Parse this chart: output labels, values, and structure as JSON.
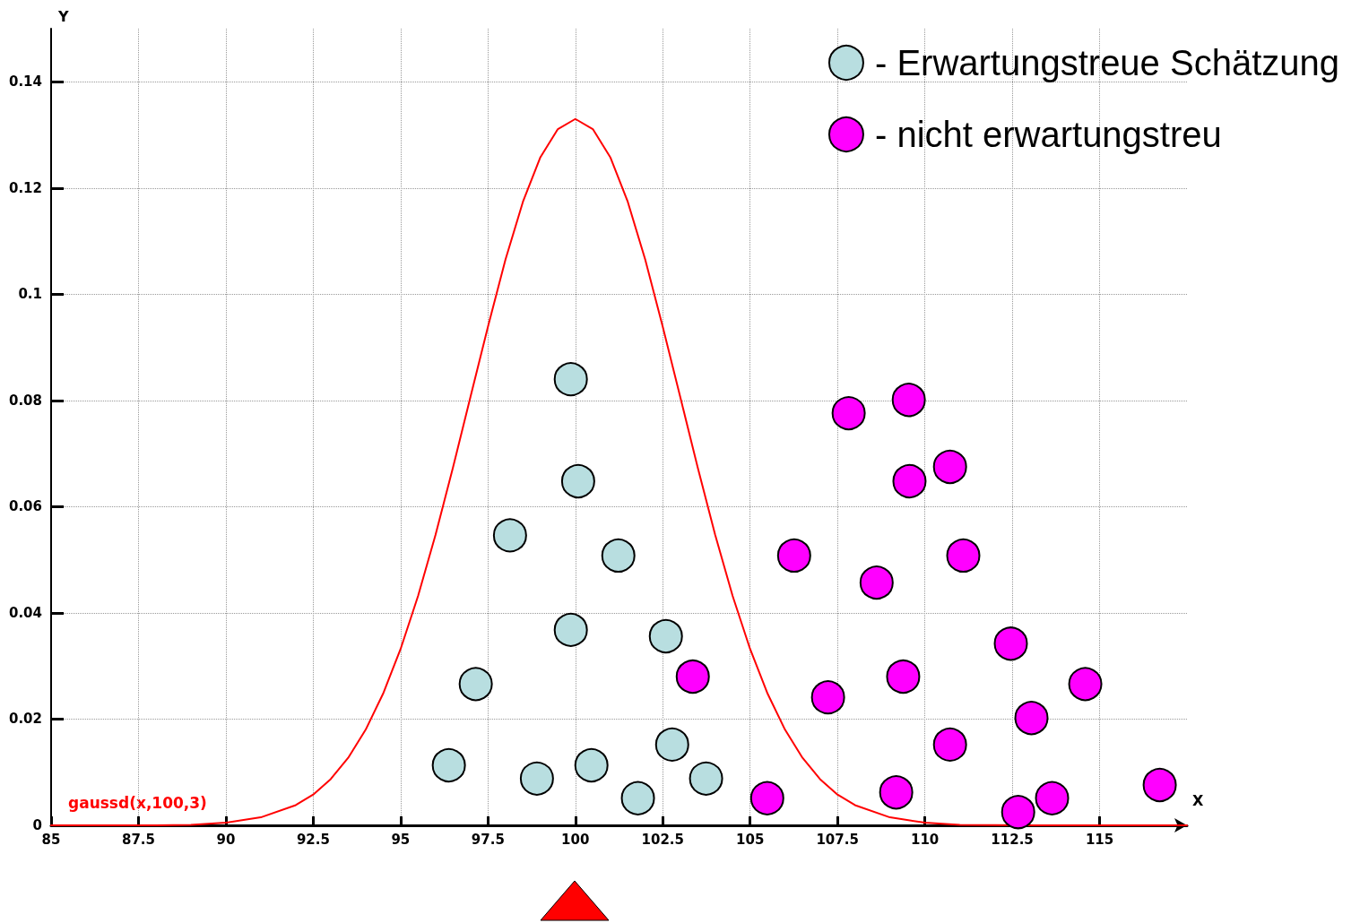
{
  "chart_data": {
    "type": "scatter",
    "xlabel": "X",
    "ylabel": "Y",
    "xlim": [
      85,
      117.5
    ],
    "ylim": [
      0,
      0.15
    ],
    "xticks": [
      85,
      87.5,
      90,
      92.5,
      95,
      97.5,
      100,
      102.5,
      105,
      107.5,
      110,
      112.5,
      115
    ],
    "yticks": [
      0,
      0.02,
      0.04,
      0.06,
      0.08,
      0.1,
      0.12,
      0.14
    ],
    "grid": true,
    "legend": "top right",
    "marker": "circle",
    "annotations": [
      "gaussd(x,100,3)"
    ],
    "series": [
      {
        "type": "line",
        "marker": "none",
        "line_style": "solid",
        "color": "#ff0000",
        "x": [
          85,
          87,
          88,
          89,
          90,
          91,
          92,
          92.5,
          93,
          93.5,
          94,
          94.5,
          95,
          95.5,
          96,
          96.5,
          97,
          97.5,
          98,
          98.5,
          99,
          99.5,
          100,
          100.5,
          101,
          101.5,
          102,
          102.5,
          103,
          103.5,
          104,
          104.5,
          105,
          105.5,
          106,
          106.5,
          107,
          107.5,
          108,
          109,
          110,
          111,
          113,
          115,
          117.5
        ],
        "values": [
          0,
          0,
          0,
          0.0001,
          0.0005,
          0.0015,
          0.0038,
          0.0058,
          0.0087,
          0.0127,
          0.018,
          0.0248,
          0.0332,
          0.0432,
          0.0547,
          0.0674,
          0.0807,
          0.0939,
          0.1065,
          0.1174,
          0.1258,
          0.1311,
          0.133,
          0.1311,
          0.1258,
          0.1174,
          0.1065,
          0.0939,
          0.0807,
          0.0674,
          0.0547,
          0.0432,
          0.0332,
          0.0248,
          0.018,
          0.0127,
          0.0087,
          0.0058,
          0.0038,
          0.0015,
          0.0005,
          0.0001,
          0,
          0,
          0
        ]
      },
      {
        "name": "- Erwartungstreue Schätzung",
        "color": "#b8dee0",
        "x": [
          96.38,
          97.15,
          98.13,
          98.9,
          99.87,
          99.87,
          100.08,
          100.46,
          101.23,
          101.79,
          102.59,
          102.77,
          103.74
        ],
        "values": [
          0.0113,
          0.0266,
          0.0546,
          0.0088,
          0.084,
          0.0368,
          0.0648,
          0.0113,
          0.0508,
          0.0051,
          0.0356,
          0.0152,
          0.0088
        ]
      },
      {
        "name": "- nicht erwartungstreu",
        "color": "#ff00ff",
        "x": [
          103.36,
          105.49,
          106.26,
          107.23,
          107.82,
          108.62,
          109.18,
          109.38,
          109.54,
          109.56,
          110.72,
          110.72,
          111.1,
          112.46,
          112.67,
          113.05,
          113.64,
          114.59,
          116.72
        ],
        "values": [
          0.028,
          0.0051,
          0.0508,
          0.0241,
          0.0776,
          0.0457,
          0.0062,
          0.028,
          0.0801,
          0.0648,
          0.0675,
          0.0152,
          0.0508,
          0.0342,
          0.0025,
          0.0202,
          0.0051,
          0.0266,
          0.0076
        ]
      }
    ]
  }
}
